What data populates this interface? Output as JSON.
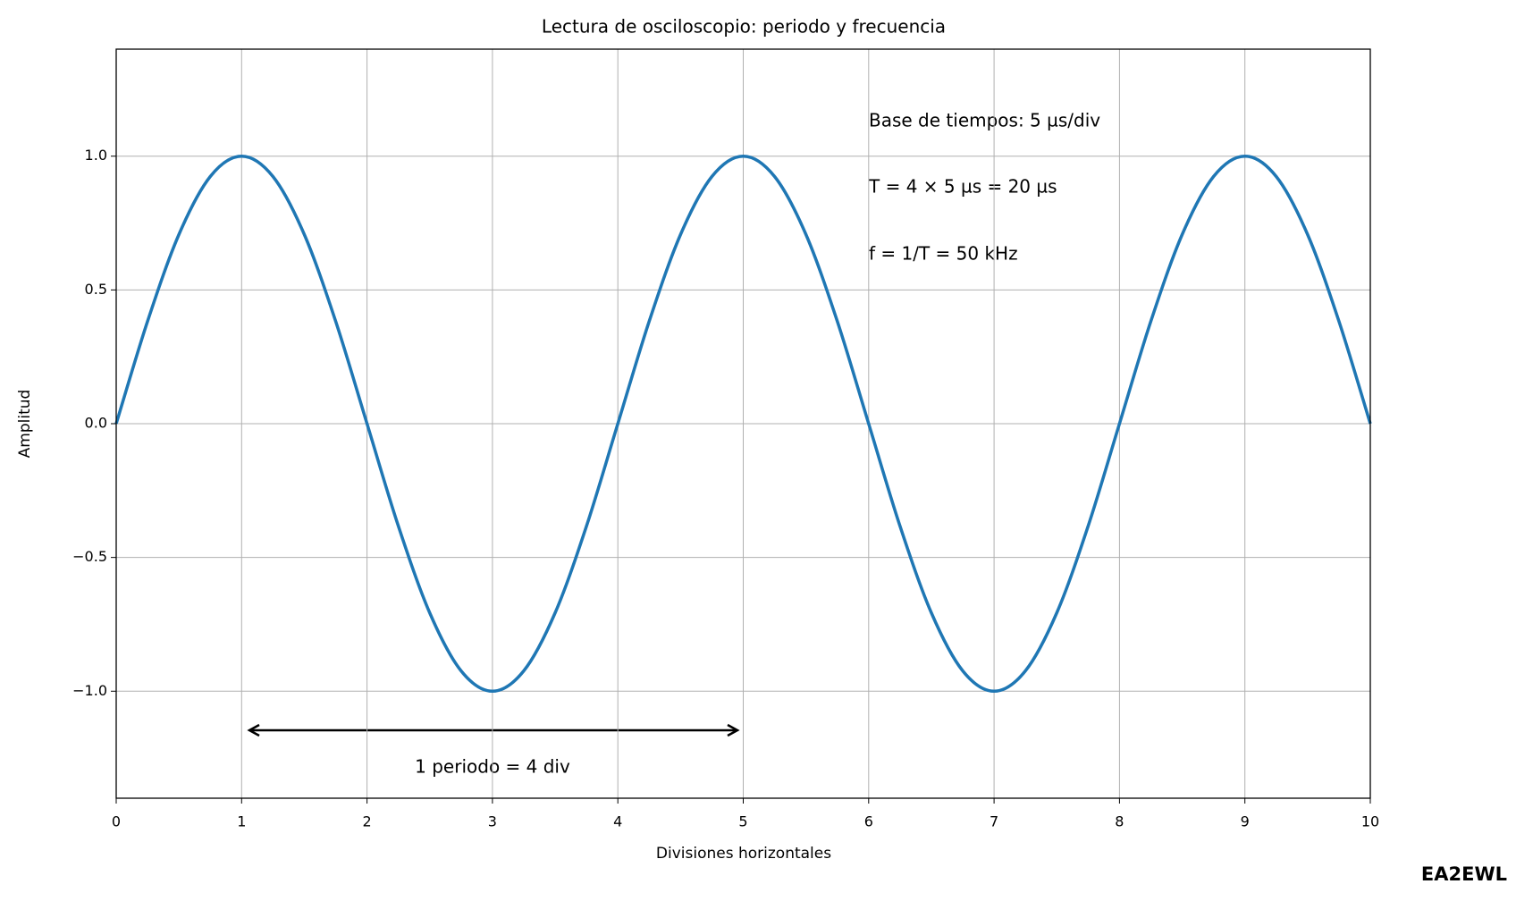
{
  "chart_data": {
    "type": "line",
    "title": "Lectura de osciloscopio: periodo y frecuencia",
    "xlabel": "Divisiones horizontales",
    "ylabel": "Amplitud",
    "x": [
      0,
      0.25,
      0.5,
      0.75,
      1,
      1.25,
      1.5,
      1.75,
      2,
      2.25,
      2.5,
      2.75,
      3,
      3.25,
      3.5,
      3.75,
      4,
      4.25,
      4.5,
      4.75,
      5,
      5.25,
      5.5,
      5.75,
      6,
      6.25,
      6.5,
      6.75,
      7,
      7.25,
      7.5,
      7.75,
      8,
      8.25,
      8.5,
      8.75,
      9,
      9.25,
      9.5,
      9.75,
      10
    ],
    "series": [
      {
        "color": "#1f77b4",
        "values": [
          0,
          0.3827,
          0.7071,
          0.9239,
          1,
          0.9239,
          0.7071,
          0.3827,
          0,
          -0.3827,
          -0.7071,
          -0.9239,
          -1,
          -0.9239,
          -0.7071,
          -0.3827,
          0,
          0.3827,
          0.7071,
          0.9239,
          1,
          0.9239,
          0.7071,
          0.3827,
          0,
          -0.3827,
          -0.7071,
          -0.9239,
          -1,
          -0.9239,
          -0.7071,
          -0.3827,
          0,
          0.3827,
          0.7071,
          0.9239,
          1,
          0.9239,
          0.7071,
          0.3827,
          0
        ]
      }
    ],
    "xlim": [
      0,
      10
    ],
    "ylim": [
      -1.4,
      1.4
    ],
    "xticks": [
      0,
      1,
      2,
      3,
      4,
      5,
      6,
      7,
      8,
      9,
      10
    ],
    "yticks": [
      {
        "value": -1,
        "label": "−1.0"
      },
      {
        "value": -0.5,
        "label": "−0.5"
      },
      {
        "value": 0,
        "label": "0.0"
      },
      {
        "value": 0.5,
        "label": "0.5"
      },
      {
        "value": 1,
        "label": "1.0"
      }
    ],
    "grid": true,
    "annotations": [
      "Base de tiempos: 5 µs/div",
      "T = 4 × 5 µs = 20 µs",
      "f = 1/T = 50 kHz"
    ],
    "period_label": "1 periodo = 4 div",
    "watermark": "EA2EWL"
  }
}
